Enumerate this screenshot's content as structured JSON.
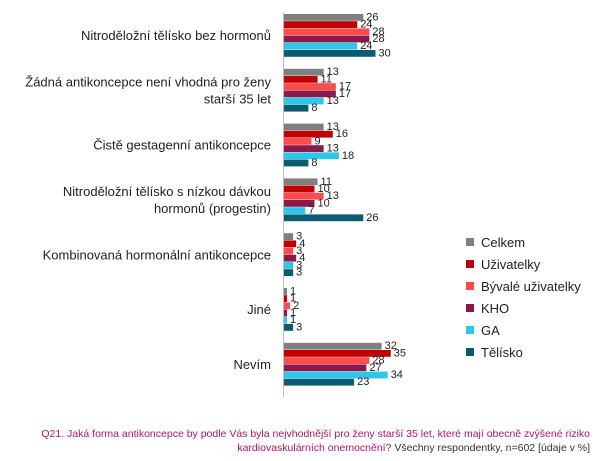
{
  "chart_data": {
    "type": "bar",
    "orientation": "horizontal",
    "categories": [
      [
        "Nitroděložní tělísko bez hormonů"
      ],
      [
        "Žádná antikoncepce není vhodná pro ženy",
        "starší 35 let"
      ],
      [
        "Čistě gestagenní antikoncepce"
      ],
      [
        "Nitroděložní tělísko s nízkou dávkou",
        "hormonů (progestin)"
      ],
      [
        "Kombinovaná hormonální antikoncepce"
      ],
      [
        "Jiné"
      ],
      [
        "Nevím"
      ]
    ],
    "series": [
      {
        "name": "Celkem",
        "color": "#7f7f7f",
        "values": [
          26,
          13,
          13,
          11,
          3,
          1,
          32
        ]
      },
      {
        "name": "Uživatelky",
        "color": "#c00000",
        "values": [
          24,
          11,
          16,
          10,
          4,
          1,
          35
        ]
      },
      {
        "name": "Bývalé uživatelky",
        "color": "#ff4b4b",
        "values": [
          28,
          17,
          9,
          13,
          3,
          2,
          28
        ]
      },
      {
        "name": "KHO",
        "color": "#8b1a4a",
        "values": [
          28,
          17,
          13,
          10,
          4,
          1,
          27
        ]
      },
      {
        "name": "GA",
        "color": "#2ec6ea",
        "values": [
          24,
          13,
          18,
          7,
          3,
          1,
          34
        ]
      },
      {
        "name": "Tělísko",
        "color": "#0c5c6f",
        "values": [
          30,
          8,
          8,
          26,
          3,
          3,
          23
        ]
      }
    ],
    "legend_position": "right",
    "grid": false
  },
  "footnote": {
    "question": "Q21. Jaká forma antikoncepce by podle Vás byla nejvhodnější pro ženy starší 35 let, které mají obecně zvýšené riziko kardiovaskulárních onemocnění?",
    "base": " Všechny respondentky, n=602 [údaje v %]"
  }
}
